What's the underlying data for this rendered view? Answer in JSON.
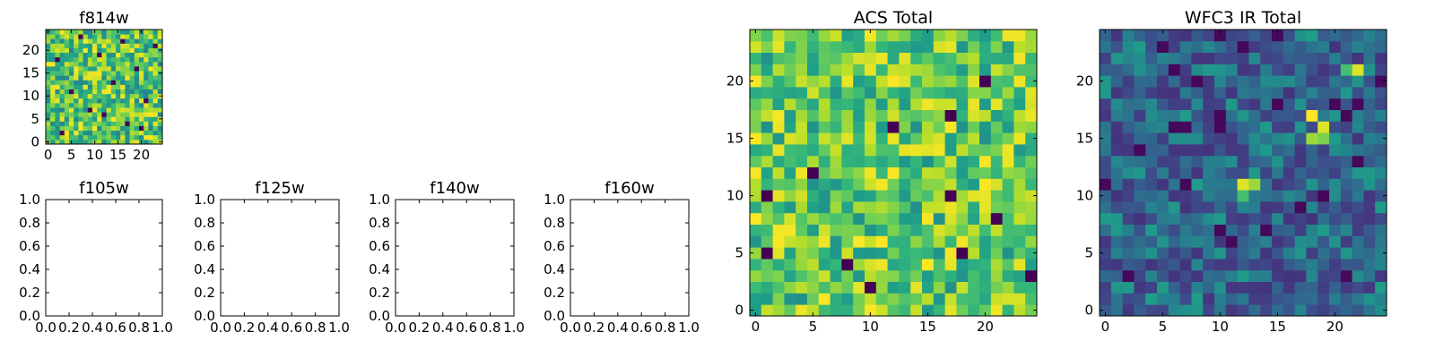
{
  "colormap": "viridis",
  "colors": {
    "viridis_stops": [
      "#440154",
      "#482878",
      "#3e4989",
      "#31688e",
      "#26828e",
      "#1f9e89",
      "#35b779",
      "#6ece58",
      "#b5de2b",
      "#fde725"
    ]
  },
  "chart_data": [
    {
      "type": "heatmap",
      "title": "f814w",
      "grid_size": 25,
      "xticks": [
        "0",
        "5",
        "10",
        "15",
        "20"
      ],
      "yticks": [
        "0",
        "5",
        "10",
        "15",
        "20"
      ],
      "pattern": "noise",
      "value_range": [
        0.45,
        1.0
      ],
      "hot_pixels": [
        [
          3,
          2
        ],
        [
          17,
          4
        ],
        [
          9,
          7
        ],
        [
          21,
          9
        ],
        [
          5,
          11
        ],
        [
          14,
          13
        ],
        [
          19,
          16
        ],
        [
          2,
          18
        ],
        [
          11,
          19
        ],
        [
          23,
          21
        ],
        [
          7,
          23
        ],
        [
          16,
          22
        ],
        [
          12,
          6
        ],
        [
          20,
          3
        ]
      ]
    },
    {
      "type": "heatmap",
      "title": "ACS Total",
      "grid_size": 25,
      "xticks": [
        "0",
        "5",
        "10",
        "15",
        "20"
      ],
      "yticks": [
        "0",
        "5",
        "10",
        "15",
        "20"
      ],
      "pattern": "noise",
      "value_range": [
        0.5,
        1.0
      ],
      "hot_pixels": [
        [
          12,
          16
        ],
        [
          17,
          17
        ],
        [
          1,
          10
        ],
        [
          17,
          10
        ],
        [
          21,
          8
        ],
        [
          8,
          4
        ],
        [
          18,
          5
        ],
        [
          1,
          5
        ],
        [
          24,
          3
        ],
        [
          5,
          12
        ],
        [
          10,
          2
        ],
        [
          20,
          20
        ]
      ]
    },
    {
      "type": "heatmap",
      "title": "WFC3 IR Total",
      "grid_size": 25,
      "xticks": [
        "0",
        "5",
        "10",
        "15",
        "20"
      ],
      "yticks": [
        "0",
        "5",
        "10",
        "15",
        "20"
      ],
      "pattern": "sources",
      "value_range": [
        0.15,
        0.55
      ],
      "sources": [
        [
          18,
          17,
          1.0
        ],
        [
          19,
          16,
          0.95
        ],
        [
          18,
          15,
          0.85
        ],
        [
          19,
          15,
          0.8
        ],
        [
          12,
          11,
          0.95
        ],
        [
          13,
          11,
          0.85
        ],
        [
          12,
          10,
          0.7
        ],
        [
          22,
          21,
          0.95
        ],
        [
          21,
          21,
          0.7
        ]
      ]
    },
    {
      "type": "empty",
      "title": "f105w",
      "xticks": [
        "0.0",
        "0.2",
        "0.4",
        "0.6",
        "0.8",
        "1.0"
      ],
      "yticks": [
        "0.0",
        "0.2",
        "0.4",
        "0.6",
        "0.8",
        "1.0"
      ],
      "xlim": [
        0,
        1
      ],
      "ylim": [
        0,
        1
      ]
    },
    {
      "type": "empty",
      "title": "f125w",
      "xticks": [
        "0.0",
        "0.2",
        "0.4",
        "0.6",
        "0.8",
        "1.0"
      ],
      "yticks": [
        "0.0",
        "0.2",
        "0.4",
        "0.6",
        "0.8",
        "1.0"
      ],
      "xlim": [
        0,
        1
      ],
      "ylim": [
        0,
        1
      ]
    },
    {
      "type": "empty",
      "title": "f140w",
      "xticks": [
        "0.0",
        "0.2",
        "0.4",
        "0.6",
        "0.8",
        "1.0"
      ],
      "yticks": [
        "0.0",
        "0.2",
        "0.4",
        "0.6",
        "0.8",
        "1.0"
      ],
      "xlim": [
        0,
        1
      ],
      "ylim": [
        0,
        1
      ]
    },
    {
      "type": "empty",
      "title": "f160w",
      "xticks": [
        "0.0",
        "0.2",
        "0.4",
        "0.6",
        "0.8",
        "1.0"
      ],
      "yticks": [
        "0.0",
        "0.2",
        "0.4",
        "0.6",
        "0.8",
        "1.0"
      ],
      "xlim": [
        0,
        1
      ],
      "ylim": [
        0,
        1
      ]
    }
  ]
}
